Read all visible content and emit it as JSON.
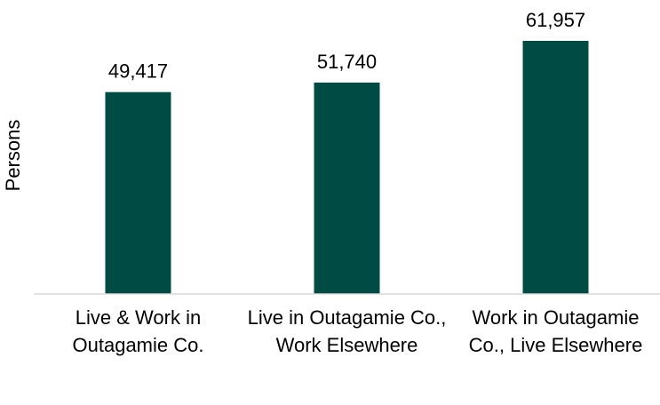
{
  "chart_data": {
    "type": "bar",
    "y_label": "Persons",
    "categories": [
      "Live & Work in Outagamie Co.",
      "Live in Outagamie Co., Work Elsewhere",
      "Work in Outagamie Co., Live Elsewhere"
    ],
    "values": [
      49417,
      51740,
      61957
    ],
    "value_labels": [
      "49,417",
      "51,740",
      "61,957"
    ],
    "color": "#004c45",
    "ylim": [
      0,
      70000
    ]
  }
}
